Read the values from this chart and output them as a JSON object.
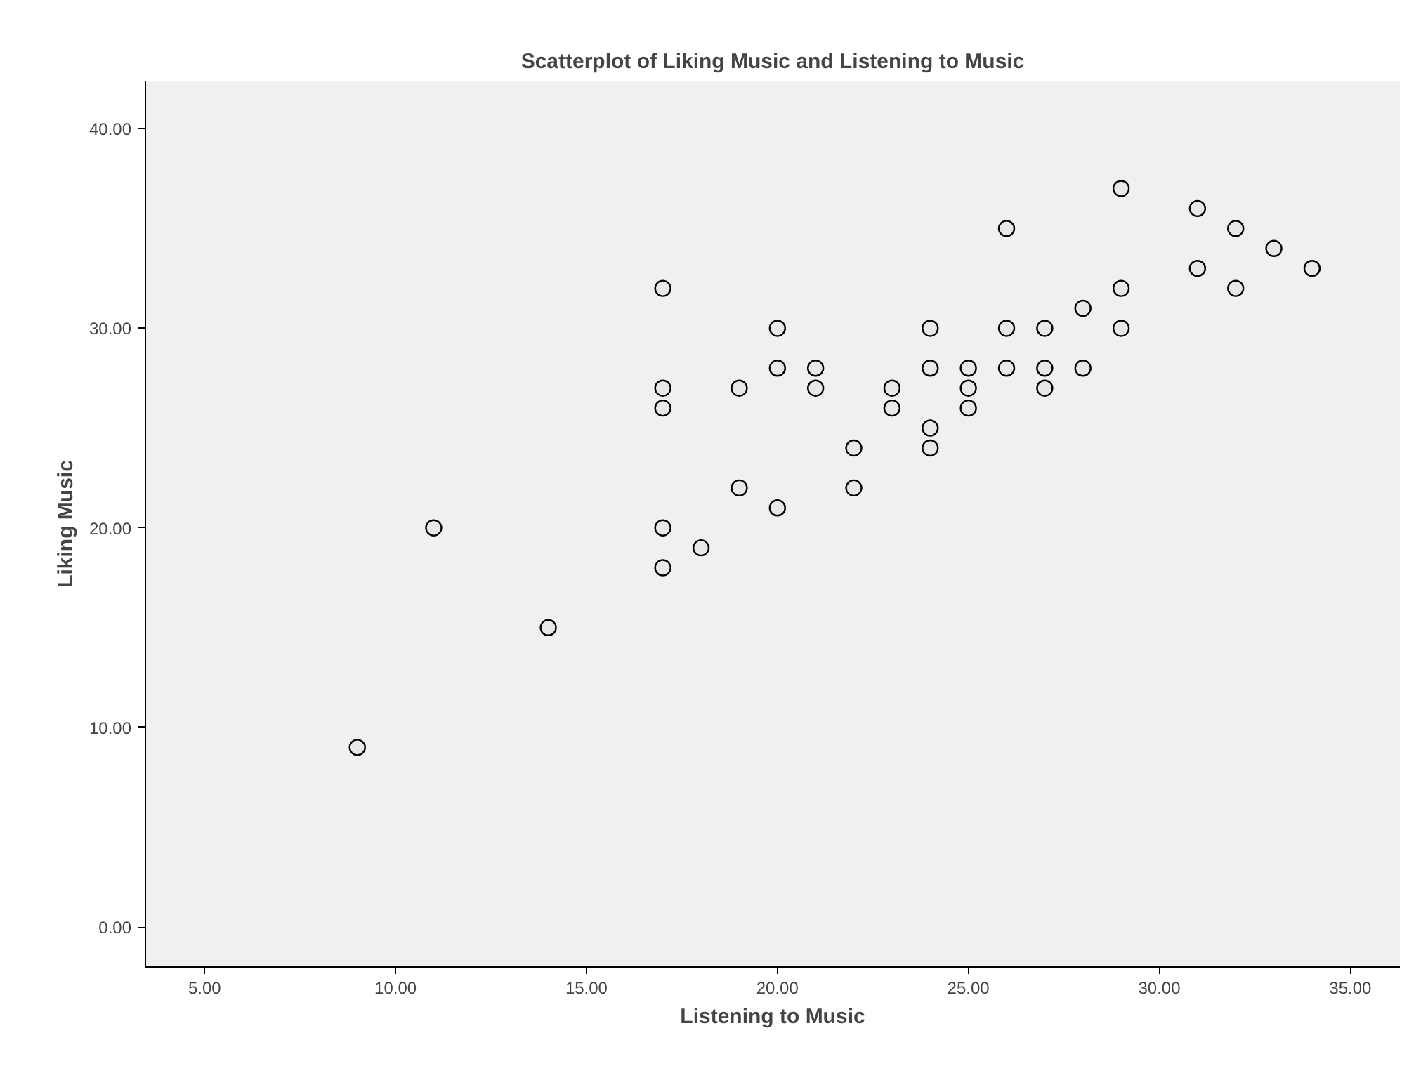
{
  "chart_data": {
    "type": "scatter",
    "title": "Scatterplot of Liking Music and Listening to Music",
    "xlabel": "Listening to Music",
    "ylabel": "Liking Music",
    "x": [
      9,
      11,
      14,
      17,
      17,
      17,
      17,
      17,
      18,
      19,
      19,
      20,
      20,
      20,
      21,
      21,
      22,
      22,
      23,
      23,
      24,
      24,
      24,
      24,
      25,
      25,
      25,
      26,
      26,
      26,
      27,
      27,
      27,
      28,
      28,
      29,
      29,
      29,
      31,
      31,
      32,
      32,
      33,
      34
    ],
    "series": [
      {
        "color": "#000000",
        "values": [
          9,
          20,
          15,
          32,
          27,
          26,
          20,
          18,
          19,
          27,
          22,
          30,
          28,
          21,
          28,
          27,
          24,
          22,
          27,
          26,
          30,
          28,
          25,
          24,
          28,
          27,
          26,
          35,
          30,
          28,
          30,
          28,
          27,
          31,
          28,
          37,
          32,
          30,
          36,
          33,
          35,
          32,
          34,
          33
        ]
      }
    ],
    "xlim": [
      3.45,
      36.3
    ],
    "ylim": [
      -2,
      42.4
    ],
    "xticks": [
      {
        "value": 5,
        "label": "5.00"
      },
      {
        "value": 10,
        "label": "10.00"
      },
      {
        "value": 15,
        "label": "15.00"
      },
      {
        "value": 20,
        "label": "20.00"
      },
      {
        "value": 25,
        "label": "25.00"
      },
      {
        "value": 30,
        "label": "30.00"
      },
      {
        "value": 35,
        "label": "35.00"
      }
    ],
    "yticks": [
      {
        "value": 0,
        "label": "0.00"
      },
      {
        "value": 10,
        "label": "10.00"
      },
      {
        "value": 20,
        "label": "20.00"
      },
      {
        "value": 30,
        "label": "30.00"
      },
      {
        "value": 40,
        "label": "40.00"
      }
    ],
    "marker": "circle",
    "grid": false
  }
}
